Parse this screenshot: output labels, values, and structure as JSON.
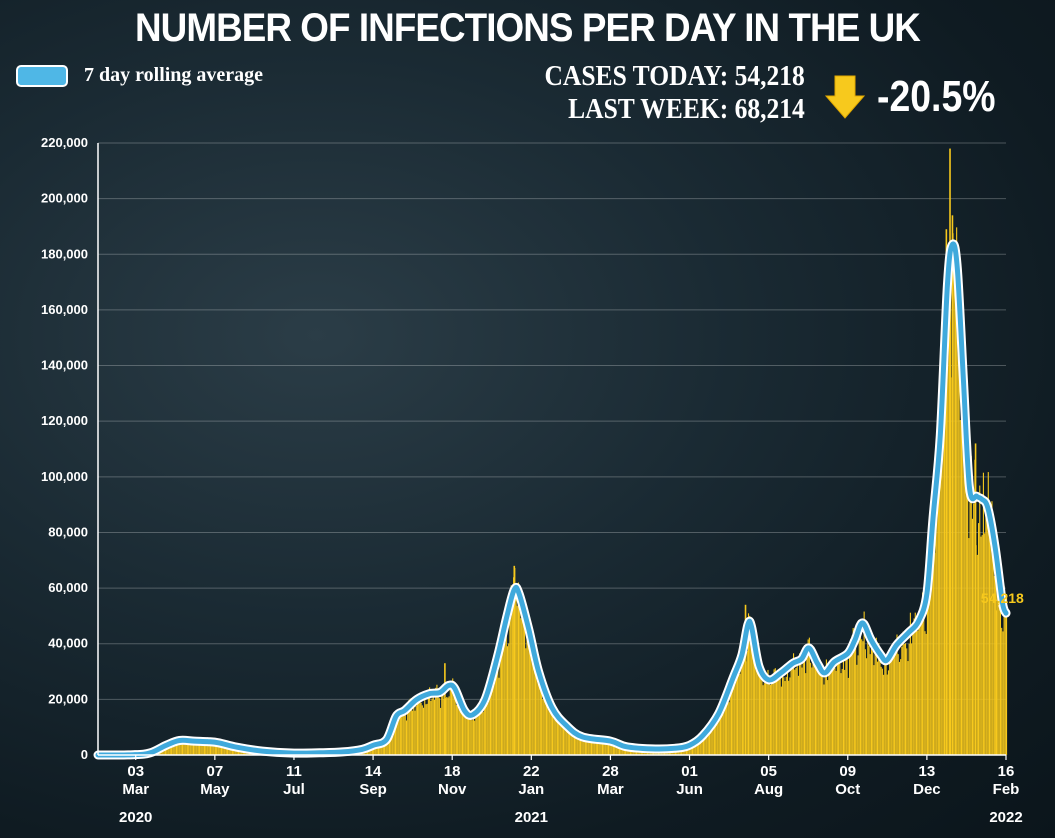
{
  "title": "NUMBER OF INFECTIONS PER DAY IN THE UK",
  "legend": {
    "label": "7 day rolling average"
  },
  "stats": {
    "today_label": "CASES TODAY: 54,218",
    "week_label": "LAST WEEK: 68,214",
    "change": "-20.5%",
    "change_icon": "arrow-down-icon"
  },
  "colors": {
    "bars": "#f7c91d",
    "line": "#3fa9dc",
    "line_outline": "#ffffff",
    "text": "#ffffff"
  },
  "chart_data": {
    "type": "bar",
    "title": "NUMBER OF INFECTIONS PER DAY IN THE UK",
    "xlabel": "",
    "ylabel": "",
    "ylim": [
      0,
      220000
    ],
    "yticks": [
      0,
      20000,
      40000,
      60000,
      80000,
      100000,
      120000,
      140000,
      160000,
      180000,
      200000,
      220000
    ],
    "ytick_labels": [
      "0",
      "20,000",
      "40,000",
      "60,000",
      "80,000",
      "100,000",
      "120,000",
      "140,000",
      "160,000",
      "180,000",
      "200,000",
      "220,000"
    ],
    "grid": true,
    "legend_position": "top-left",
    "x_range": [
      "2020-02-01",
      "2022-02-16"
    ],
    "xticks": [
      {
        "date": "2020-03-03",
        "day": "03",
        "month": "Mar"
      },
      {
        "date": "2020-05-07",
        "day": "07",
        "month": "May"
      },
      {
        "date": "2020-07-11",
        "day": "11",
        "month": "Jul"
      },
      {
        "date": "2020-09-14",
        "day": "14",
        "month": "Sep"
      },
      {
        "date": "2020-11-18",
        "day": "18",
        "month": "Nov"
      },
      {
        "date": "2021-01-22",
        "day": "22",
        "month": "Jan"
      },
      {
        "date": "2021-03-28",
        "day": "28",
        "month": "Mar"
      },
      {
        "date": "2021-06-01",
        "day": "01",
        "month": "Jun"
      },
      {
        "date": "2021-08-05",
        "day": "05",
        "month": "Aug"
      },
      {
        "date": "2021-10-09",
        "day": "09",
        "month": "Oct"
      },
      {
        "date": "2021-12-13",
        "day": "13",
        "month": "Dec"
      },
      {
        "date": "2022-02-16",
        "day": "16",
        "month": "Feb"
      }
    ],
    "year_labels": [
      {
        "date": "2020-03-03",
        "label": "2020"
      },
      {
        "date": "2021-01-22",
        "label": "2021"
      },
      {
        "date": "2022-02-16",
        "label": "2022"
      }
    ],
    "end_label": "54,218",
    "series": [
      {
        "name": "7 day rolling average",
        "type": "line",
        "points": [
          [
            "2020-02-01",
            0
          ],
          [
            "2020-03-01",
            100
          ],
          [
            "2020-03-15",
            800
          ],
          [
            "2020-03-28",
            3500
          ],
          [
            "2020-04-08",
            5200
          ],
          [
            "2020-04-20",
            5000
          ],
          [
            "2020-05-01",
            4800
          ],
          [
            "2020-05-10",
            4400
          ],
          [
            "2020-05-25",
            2800
          ],
          [
            "2020-06-15",
            1400
          ],
          [
            "2020-07-11",
            700
          ],
          [
            "2020-08-01",
            800
          ],
          [
            "2020-08-20",
            1100
          ],
          [
            "2020-09-05",
            2000
          ],
          [
            "2020-09-14",
            3500
          ],
          [
            "2020-09-25",
            5500
          ],
          [
            "2020-10-03",
            14000
          ],
          [
            "2020-10-10",
            16000
          ],
          [
            "2020-10-20",
            20000
          ],
          [
            "2020-10-30",
            22000
          ],
          [
            "2020-11-08",
            22500
          ],
          [
            "2020-11-15",
            25000
          ],
          [
            "2020-11-20",
            24000
          ],
          [
            "2020-11-28",
            16000
          ],
          [
            "2020-12-05",
            14500
          ],
          [
            "2020-12-15",
            20000
          ],
          [
            "2020-12-25",
            35000
          ],
          [
            "2021-01-02",
            50000
          ],
          [
            "2021-01-08",
            59500
          ],
          [
            "2021-01-12",
            58000
          ],
          [
            "2021-01-20",
            45000
          ],
          [
            "2021-01-28",
            30000
          ],
          [
            "2021-02-08",
            17000
          ],
          [
            "2021-02-20",
            10500
          ],
          [
            "2021-03-05",
            6500
          ],
          [
            "2021-03-28",
            5000
          ],
          [
            "2021-04-10",
            3000
          ],
          [
            "2021-05-01",
            2200
          ],
          [
            "2021-05-20",
            2400
          ],
          [
            "2021-06-01",
            3500
          ],
          [
            "2021-06-12",
            7000
          ],
          [
            "2021-06-25",
            15000
          ],
          [
            "2021-07-07",
            28000
          ],
          [
            "2021-07-14",
            36000
          ],
          [
            "2021-07-19",
            47000
          ],
          [
            "2021-07-22",
            46000
          ],
          [
            "2021-07-28",
            32000
          ],
          [
            "2021-08-05",
            27000
          ],
          [
            "2021-08-15",
            29500
          ],
          [
            "2021-08-25",
            33000
          ],
          [
            "2021-09-01",
            34500
          ],
          [
            "2021-09-07",
            38500
          ],
          [
            "2021-09-14",
            33000
          ],
          [
            "2021-09-20",
            29500
          ],
          [
            "2021-09-28",
            33500
          ],
          [
            "2021-10-09",
            36500
          ],
          [
            "2021-10-15",
            41500
          ],
          [
            "2021-10-21",
            47500
          ],
          [
            "2021-10-28",
            41500
          ],
          [
            "2021-11-05",
            36000
          ],
          [
            "2021-11-10",
            34000
          ],
          [
            "2021-11-18",
            39500
          ],
          [
            "2021-11-28",
            44000
          ],
          [
            "2021-12-06",
            48000
          ],
          [
            "2021-12-13",
            58000
          ],
          [
            "2021-12-18",
            85000
          ],
          [
            "2021-12-24",
            115000
          ],
          [
            "2021-12-30",
            170000
          ],
          [
            "2022-01-03",
            183500
          ],
          [
            "2022-01-07",
            175000
          ],
          [
            "2022-01-12",
            135000
          ],
          [
            "2022-01-17",
            96000
          ],
          [
            "2022-01-23",
            93000
          ],
          [
            "2022-01-27",
            92000
          ],
          [
            "2022-02-01",
            89000
          ],
          [
            "2022-02-07",
            75000
          ],
          [
            "2022-02-13",
            55000
          ],
          [
            "2022-02-16",
            51000
          ]
        ]
      },
      {
        "name": "",
        "type": "bar",
        "spikes": [
          [
            "2020-11-12",
            33000
          ],
          [
            "2021-01-08",
            68000
          ],
          [
            "2021-07-17",
            54000
          ],
          [
            "2021-12-29",
            189000
          ],
          [
            "2022-01-01",
            218000
          ],
          [
            "2022-01-03",
            194000
          ],
          [
            "2022-01-22",
            112000
          ],
          [
            "2022-02-08",
            52000
          ]
        ]
      }
    ]
  }
}
